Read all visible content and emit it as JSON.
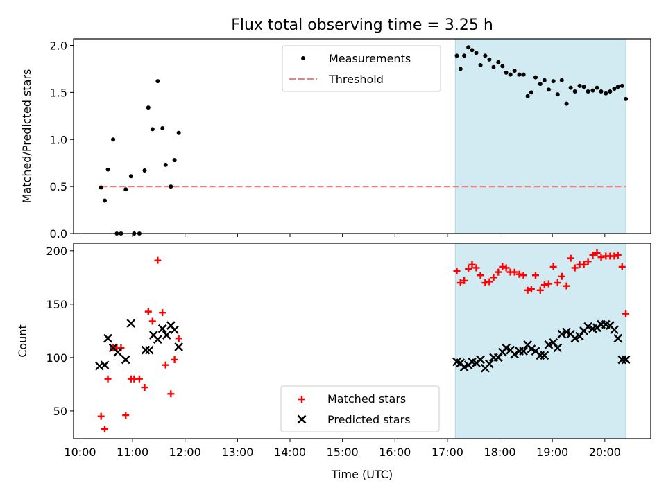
{
  "figure_title": "Flux total observing time = 3.25 h",
  "colors": {
    "measurement": "#000000",
    "threshold": "#f08080",
    "matched": "#ff0000",
    "predicted": "#000000",
    "highlight": "#add8e6"
  },
  "chart_data": [
    {
      "type": "scatter",
      "ylabel": "Matched/Predicted stars",
      "xlim": [
        9.875,
        20.875
      ],
      "ylim": [
        0,
        2.07
      ],
      "yticks": [
        0.0,
        0.5,
        1.0,
        1.5,
        2.0
      ],
      "ytick_labels": [
        "0.0",
        "0.5",
        "1.0",
        "1.5",
        "2.0"
      ],
      "highlight_span": [
        17.15,
        20.4
      ],
      "legend": {
        "placement": "upper center",
        "items": [
          "Measurements",
          "Threshold"
        ]
      },
      "threshold": {
        "name": "Threshold",
        "value": 0.5,
        "x_range": [
          10.4,
          20.4
        ],
        "style": "dashed"
      },
      "series": [
        {
          "name": "Measurements",
          "marker": "dot",
          "x": [
            10.4,
            10.47,
            10.53,
            10.63,
            10.7,
            10.78,
            10.87,
            10.97,
            11.03,
            11.13,
            11.23,
            11.3,
            11.38,
            11.48,
            11.57,
            11.63,
            11.73,
            11.8,
            11.88,
            17.18,
            17.25,
            17.32,
            17.4,
            17.47,
            17.55,
            17.63,
            17.72,
            17.8,
            17.88,
            17.97,
            18.05,
            18.12,
            18.2,
            18.28,
            18.37,
            18.45,
            18.53,
            18.6,
            18.68,
            18.77,
            18.85,
            18.93,
            19.02,
            19.1,
            19.18,
            19.27,
            19.35,
            19.43,
            19.52,
            19.6,
            19.68,
            19.77,
            19.85,
            19.93,
            20.02,
            20.1,
            20.18,
            20.25,
            20.33,
            20.4
          ],
          "y": [
            0.49,
            0.35,
            0.68,
            1.0,
            0.0,
            0.0,
            0.47,
            0.61,
            0.0,
            0.0,
            0.67,
            1.34,
            1.11,
            1.62,
            1.12,
            0.73,
            0.5,
            0.78,
            1.07,
            1.89,
            1.75,
            1.89,
            1.98,
            1.95,
            1.92,
            1.79,
            1.89,
            1.85,
            1.77,
            1.82,
            1.78,
            1.71,
            1.69,
            1.73,
            1.69,
            1.69,
            1.46,
            1.5,
            1.66,
            1.59,
            1.63,
            1.53,
            1.62,
            1.48,
            1.63,
            1.38,
            1.55,
            1.51,
            1.57,
            1.56,
            1.51,
            1.52,
            1.55,
            1.51,
            1.49,
            1.51,
            1.54,
            1.56,
            1.57,
            1.43
          ]
        }
      ]
    },
    {
      "type": "scatter",
      "ylabel": "Count",
      "xlabel": "Time (UTC)",
      "xlim": [
        9.875,
        20.875
      ],
      "ylim": [
        24,
        207
      ],
      "yticks": [
        50,
        100,
        150,
        200
      ],
      "ytick_labels": [
        "50",
        "100",
        "150",
        "200"
      ],
      "xticks": [
        10,
        11,
        12,
        13,
        14,
        15,
        16,
        17,
        18,
        19,
        20
      ],
      "xtick_labels": [
        "10:00",
        "11:00",
        "12:00",
        "13:00",
        "14:00",
        "15:00",
        "16:00",
        "17:00",
        "18:00",
        "19:00",
        "20:00"
      ],
      "highlight_span": [
        17.15,
        20.4
      ],
      "legend": {
        "placement": "lower center",
        "items": [
          "Matched stars",
          "Predicted stars"
        ]
      },
      "series": [
        {
          "name": "Matched stars",
          "marker": "plus",
          "x": [
            10.4,
            10.47,
            10.53,
            10.63,
            10.7,
            10.78,
            10.87,
            10.97,
            11.03,
            11.13,
            11.23,
            11.3,
            11.38,
            11.48,
            11.57,
            11.63,
            11.73,
            11.8,
            11.88,
            17.18,
            17.25,
            17.32,
            17.4,
            17.47,
            17.55,
            17.63,
            17.72,
            17.8,
            17.88,
            17.97,
            18.05,
            18.12,
            18.2,
            18.28,
            18.37,
            18.45,
            18.53,
            18.6,
            18.68,
            18.77,
            18.85,
            18.93,
            19.02,
            19.1,
            19.18,
            19.27,
            19.35,
            19.43,
            19.52,
            19.6,
            19.68,
            19.77,
            19.85,
            19.93,
            20.02,
            20.1,
            20.18,
            20.25,
            20.33,
            20.4
          ],
          "y": [
            45,
            33,
            80,
            109,
            109,
            109,
            46,
            80,
            80,
            80,
            72,
            143,
            134,
            191,
            142,
            93,
            66,
            98,
            118,
            181,
            170,
            172,
            183,
            187,
            184,
            177,
            170,
            171,
            175,
            180,
            185,
            184,
            180,
            180,
            178,
            177,
            163,
            164,
            177,
            163,
            168,
            169,
            185,
            170,
            176,
            167,
            193,
            184,
            187,
            187,
            190,
            196,
            198,
            194,
            195,
            195,
            195,
            196,
            185,
            141
          ]
        },
        {
          "name": "Predicted stars",
          "marker": "x",
          "x": [
            10.37,
            10.47,
            10.53,
            10.63,
            10.72,
            10.87,
            10.97,
            11.25,
            11.32,
            11.4,
            11.48,
            11.57,
            11.65,
            11.73,
            11.8,
            11.88,
            17.18,
            17.25,
            17.32,
            17.4,
            17.47,
            17.55,
            17.63,
            17.72,
            17.8,
            17.88,
            17.97,
            18.05,
            18.12,
            18.2,
            18.28,
            18.37,
            18.45,
            18.53,
            18.6,
            18.68,
            18.77,
            18.85,
            18.93,
            19.02,
            19.1,
            19.18,
            19.27,
            19.35,
            19.43,
            19.52,
            19.6,
            19.68,
            19.77,
            19.85,
            19.93,
            20.02,
            20.1,
            20.18,
            20.25,
            20.33,
            20.4
          ],
          "y": [
            92,
            93,
            118,
            109,
            105,
            98,
            132,
            107,
            107,
            121,
            117,
            127,
            121,
            130,
            126,
            110,
            96,
            95,
            91,
            93,
            96,
            95,
            98,
            90,
            94,
            100,
            100,
            105,
            109,
            107,
            103,
            106,
            106,
            112,
            108,
            106,
            102,
            102,
            112,
            114,
            109,
            122,
            124,
            122,
            118,
            120,
            125,
            129,
            127,
            128,
            131,
            131,
            130,
            126,
            118,
            98,
            98
          ]
        }
      ]
    }
  ]
}
